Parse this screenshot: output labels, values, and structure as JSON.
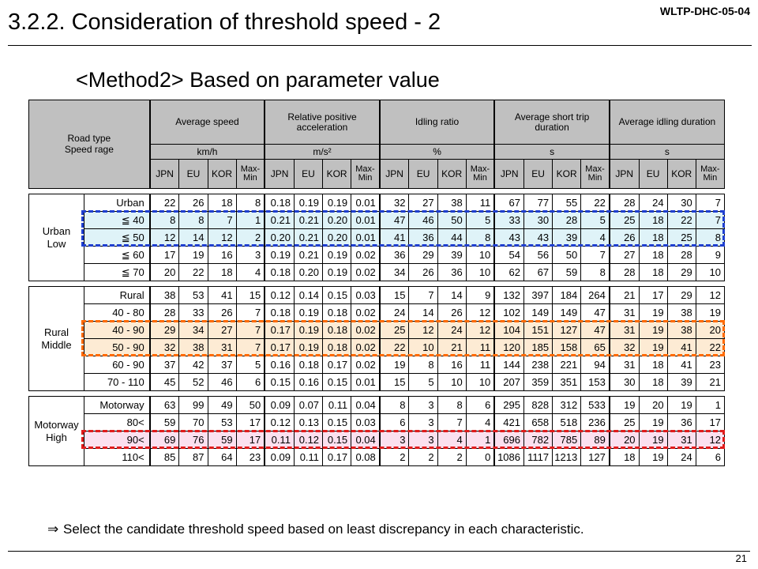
{
  "header": {
    "doc_id": "WLTP-DHC-05-04",
    "title": "3.2.2. Consideration of threshold speed - 2",
    "subtitle": "<Method2> Based on parameter value"
  },
  "table": {
    "corner_label": [
      "Road type",
      "Speed rage"
    ],
    "groups": [
      {
        "label": [
          "Average speed"
        ],
        "unit": "km/h"
      },
      {
        "label": [
          "Relative positive",
          "acceleration"
        ],
        "unit": "m/s²"
      },
      {
        "label": [
          "Idling ratio"
        ],
        "unit": "%"
      },
      {
        "label": [
          "Average short trip",
          "duration"
        ],
        "unit": "s"
      },
      {
        "label": [
          "Average idling duration"
        ],
        "unit": "s"
      }
    ],
    "subcols": [
      "JPN",
      "EU",
      "KOR",
      "Max-\nMin"
    ],
    "regions": [
      {
        "label": [
          "Urban",
          "Low"
        ],
        "rows": [
          {
            "speed": "Urban",
            "highlight": "",
            "v": [
              "22",
              "26",
              "18",
              "8",
              "0.18",
              "0.19",
              "0.19",
              "0.01",
              "32",
              "27",
              "38",
              "11",
              "67",
              "77",
              "55",
              "22",
              "28",
              "24",
              "30",
              "7"
            ]
          },
          {
            "speed": "≦ 40",
            "highlight": "blue",
            "v": [
              "8",
              "8",
              "7",
              "1",
              "0.21",
              "0.21",
              "0.20",
              "0.01",
              "47",
              "46",
              "50",
              "5",
              "33",
              "30",
              "28",
              "5",
              "25",
              "18",
              "22",
              "7"
            ]
          },
          {
            "speed": "≦ 50",
            "highlight": "blue",
            "v": [
              "12",
              "14",
              "12",
              "2",
              "0.20",
              "0.21",
              "0.20",
              "0.01",
              "41",
              "36",
              "44",
              "8",
              "43",
              "43",
              "39",
              "4",
              "26",
              "18",
              "25",
              "8"
            ]
          },
          {
            "speed": "≦ 60",
            "highlight": "",
            "v": [
              "17",
              "19",
              "16",
              "3",
              "0.19",
              "0.21",
              "0.19",
              "0.02",
              "36",
              "29",
              "39",
              "10",
              "54",
              "56",
              "50",
              "7",
              "27",
              "18",
              "28",
              "9"
            ]
          },
          {
            "speed": "≦ 70",
            "highlight": "",
            "v": [
              "20",
              "22",
              "18",
              "4",
              "0.18",
              "0.20",
              "0.19",
              "0.02",
              "34",
              "26",
              "36",
              "10",
              "62",
              "67",
              "59",
              "8",
              "28",
              "18",
              "29",
              "10"
            ]
          }
        ]
      },
      {
        "label": [
          "Rural",
          "Middle"
        ],
        "rows": [
          {
            "speed": "Rural",
            "highlight": "",
            "v": [
              "38",
              "53",
              "41",
              "15",
              "0.12",
              "0.14",
              "0.15",
              "0.03",
              "15",
              "7",
              "14",
              "9",
              "132",
              "397",
              "184",
              "264",
              "21",
              "17",
              "29",
              "12"
            ]
          },
          {
            "speed": "40 - 80",
            "highlight": "",
            "v": [
              "28",
              "33",
              "26",
              "7",
              "0.18",
              "0.19",
              "0.18",
              "0.02",
              "24",
              "14",
              "26",
              "12",
              "102",
              "149",
              "149",
              "47",
              "31",
              "19",
              "38",
              "19"
            ]
          },
          {
            "speed": "40 - 90",
            "highlight": "orange",
            "v": [
              "29",
              "34",
              "27",
              "7",
              "0.17",
              "0.19",
              "0.18",
              "0.02",
              "25",
              "12",
              "24",
              "12",
              "104",
              "151",
              "127",
              "47",
              "31",
              "19",
              "38",
              "20"
            ]
          },
          {
            "speed": "50 - 90",
            "highlight": "orange",
            "v": [
              "32",
              "38",
              "31",
              "7",
              "0.17",
              "0.19",
              "0.18",
              "0.02",
              "22",
              "10",
              "21",
              "11",
              "120",
              "185",
              "158",
              "65",
              "32",
              "19",
              "41",
              "22"
            ]
          },
          {
            "speed": "60 - 90",
            "highlight": "",
            "v": [
              "37",
              "42",
              "37",
              "5",
              "0.16",
              "0.18",
              "0.17",
              "0.02",
              "19",
              "8",
              "16",
              "11",
              "144",
              "238",
              "221",
              "94",
              "31",
              "18",
              "41",
              "23"
            ]
          },
          {
            "speed": "70 - 110",
            "highlight": "",
            "v": [
              "45",
              "52",
              "46",
              "6",
              "0.15",
              "0.16",
              "0.15",
              "0.01",
              "15",
              "5",
              "10",
              "10",
              "207",
              "359",
              "351",
              "153",
              "30",
              "18",
              "39",
              "21"
            ]
          }
        ]
      },
      {
        "label": [
          "Motorway",
          "High"
        ],
        "rows": [
          {
            "speed": "Motorway",
            "highlight": "",
            "v": [
              "63",
              "99",
              "49",
              "50",
              "0.09",
              "0.07",
              "0.11",
              "0.04",
              "8",
              "3",
              "8",
              "6",
              "295",
              "828",
              "312",
              "533",
              "19",
              "20",
              "19",
              "1"
            ]
          },
          {
            "speed": "80<",
            "highlight": "",
            "v": [
              "59",
              "70",
              "53",
              "17",
              "0.12",
              "0.13",
              "0.15",
              "0.03",
              "6",
              "3",
              "7",
              "4",
              "421",
              "658",
              "518",
              "236",
              "25",
              "19",
              "36",
              "17"
            ]
          },
          {
            "speed": "90<",
            "highlight": "pink",
            "v": [
              "69",
              "76",
              "59",
              "17",
              "0.11",
              "0.12",
              "0.15",
              "0.04",
              "3",
              "3",
              "4",
              "1",
              "696",
              "782",
              "785",
              "89",
              "20",
              "19",
              "31",
              "12"
            ]
          },
          {
            "speed": "110<",
            "highlight": "",
            "v": [
              "85",
              "87",
              "64",
              "23",
              "0.09",
              "0.11",
              "0.17",
              "0.08",
              "2",
              "2",
              "2",
              "0",
              "1086",
              "1117",
              "1213",
              "127",
              "18",
              "19",
              "24",
              "6"
            ]
          }
        ]
      }
    ]
  },
  "highlight_colors": {
    "blue": "#1f3fd0",
    "orange": "#ff6a00",
    "pink": "#e01b1b"
  },
  "note": {
    "arrow": "⇒",
    "text": "Select the candidate threshold speed based on least discrepancy in each characteristic."
  },
  "footer": {
    "page_number": "21"
  }
}
